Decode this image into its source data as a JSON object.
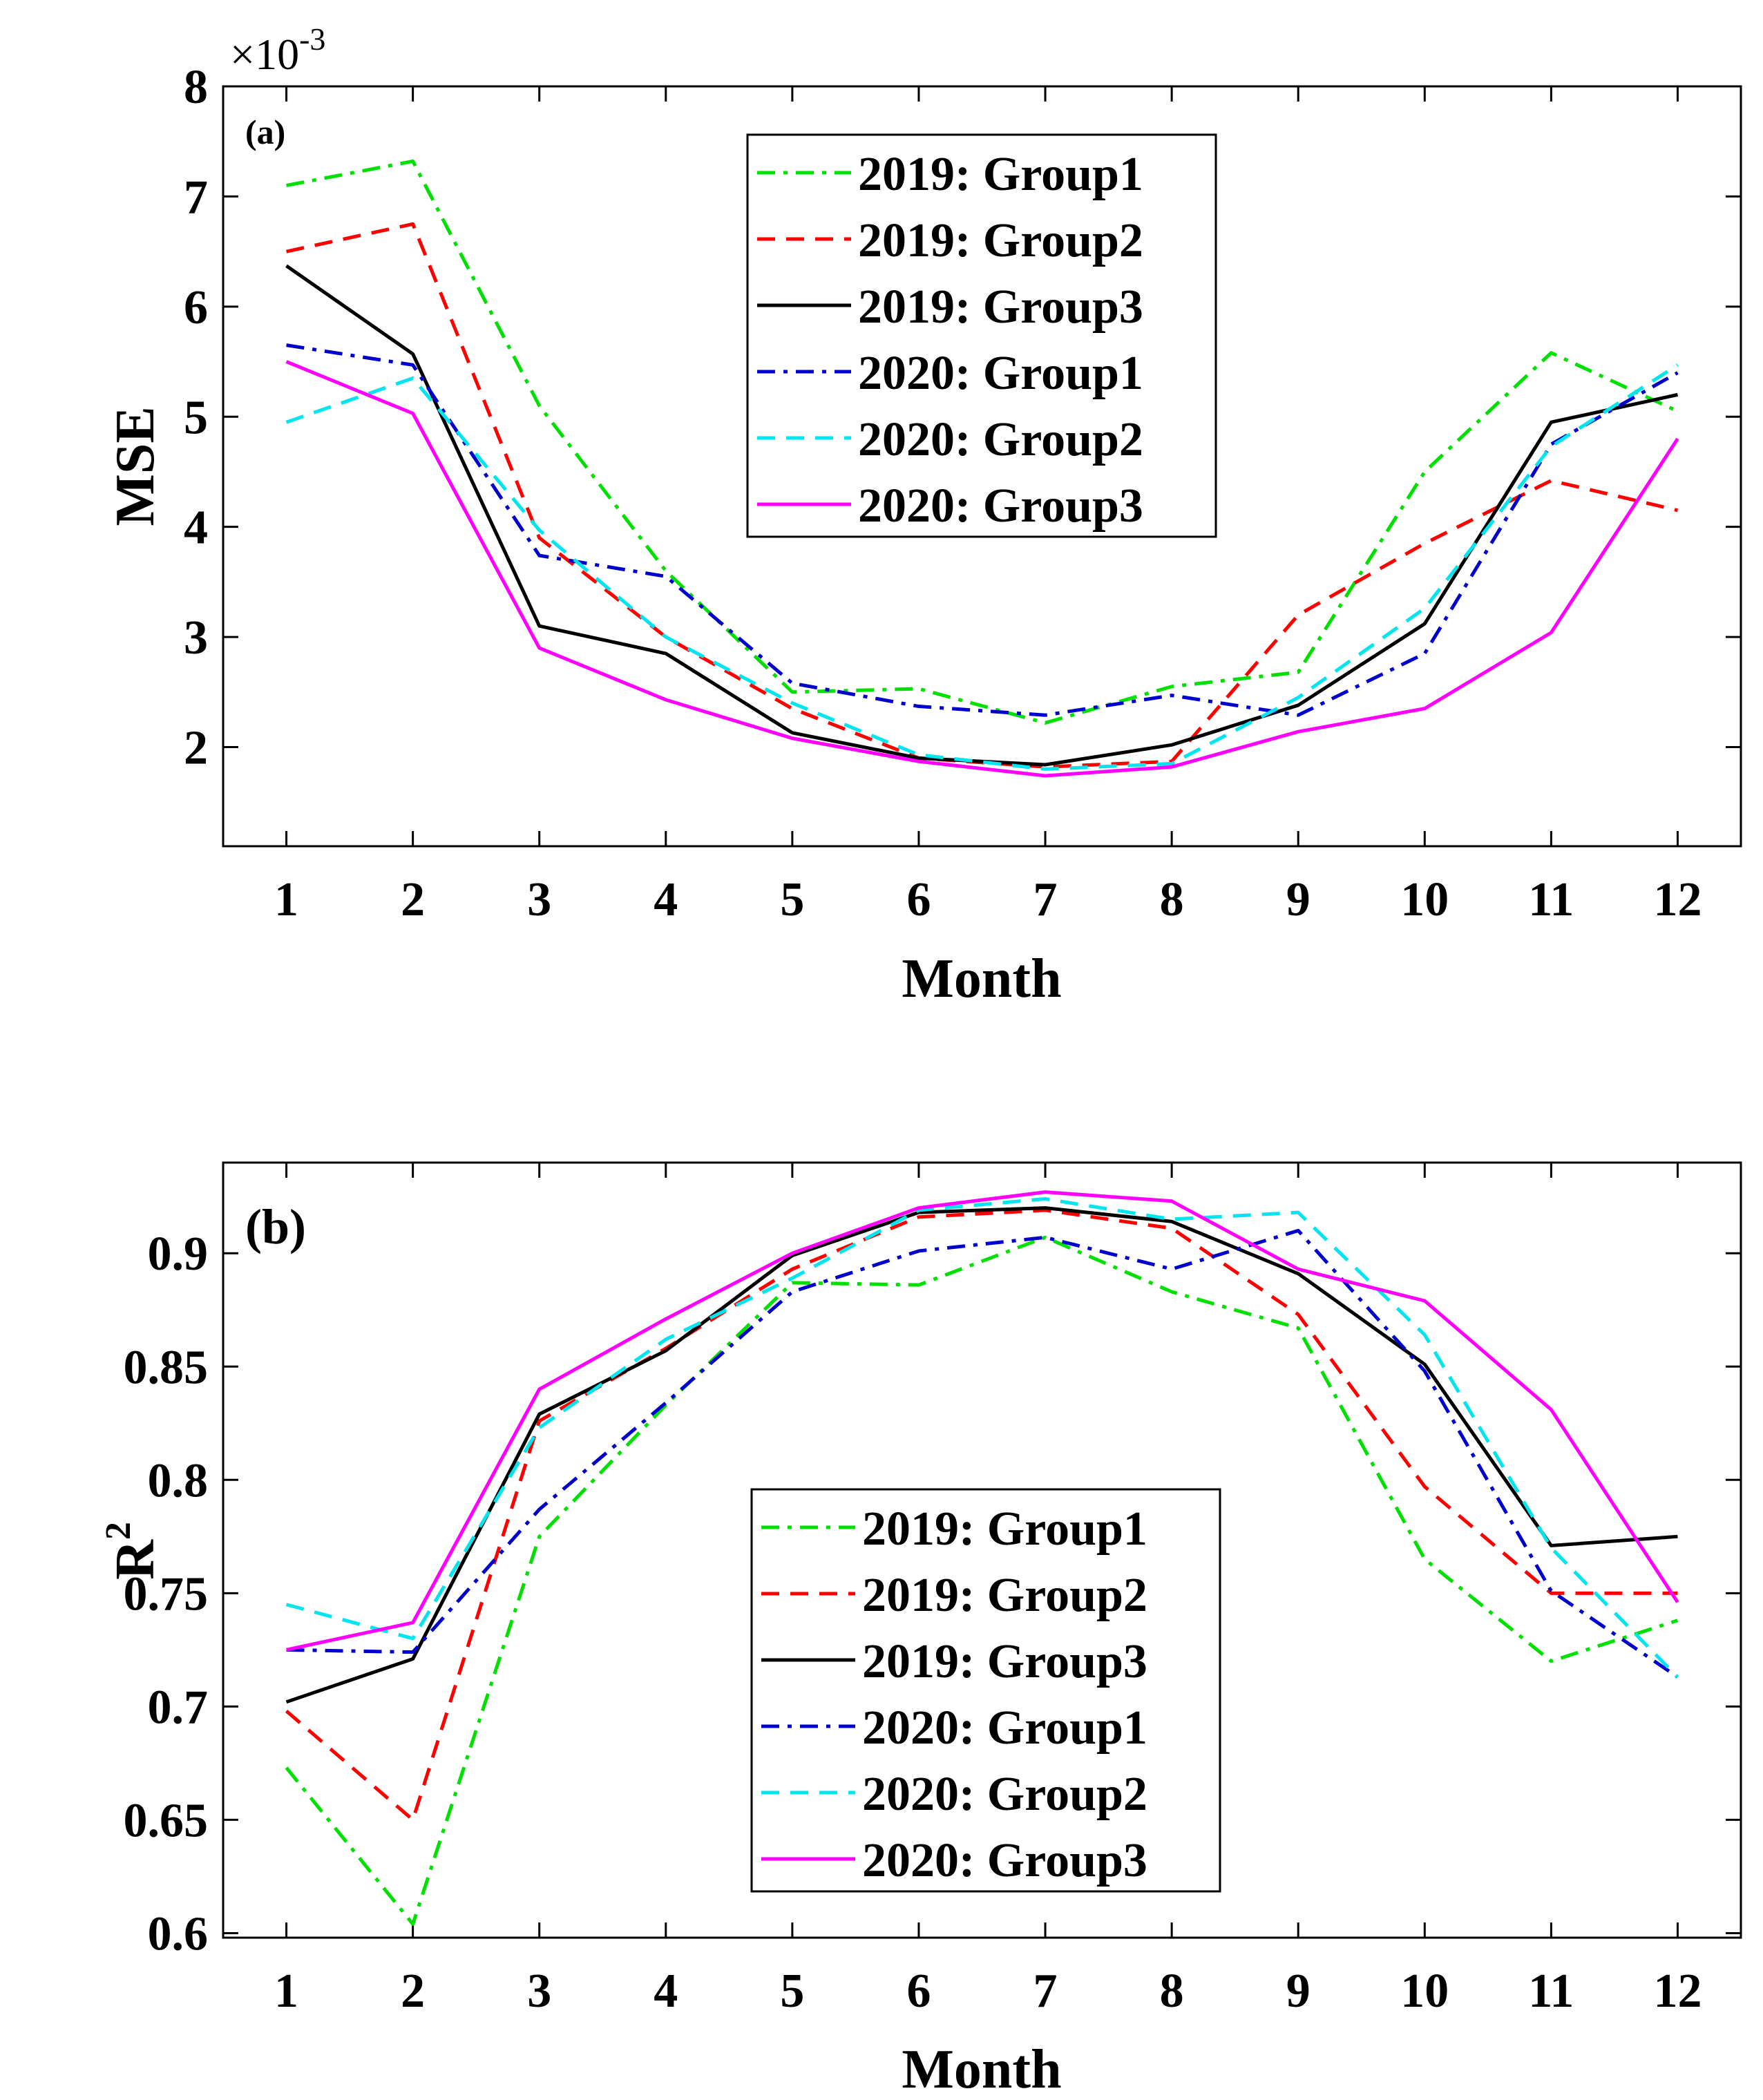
{
  "figure": {
    "background": "#ffffff"
  },
  "months": [
    1,
    2,
    3,
    4,
    5,
    6,
    7,
    8,
    9,
    10,
    11,
    12
  ],
  "series_styles": [
    {
      "name": "2019: Group1",
      "color": "#00e000",
      "dash": "dashdot"
    },
    {
      "name": "2019: Group2",
      "color": "#ff0000",
      "dash": "dashed"
    },
    {
      "name": "2019: Group3",
      "color": "#000000",
      "dash": "solid"
    },
    {
      "name": "2020: Group1",
      "color": "#0000cc",
      "dash": "dashdot"
    },
    {
      "name": "2020: Group2",
      "color": "#00e5ee",
      "dash": "dashed"
    },
    {
      "name": "2020: Group3",
      "color": "#ff00ff",
      "dash": "solid"
    }
  ],
  "chart_data": [
    {
      "type": "line",
      "panel_label": "(a)",
      "title": "",
      "xlabel": "Month",
      "ylabel": "MSE",
      "exponent_label": "×10",
      "exponent_power": "-3",
      "xlim": [
        0.5,
        12.5
      ],
      "ylim": [
        1.1,
        8.0
      ],
      "yticks": [
        2,
        3,
        4,
        5,
        6,
        7,
        8
      ],
      "ytick_labels": [
        "2",
        "3",
        "4",
        "5",
        "6",
        "7",
        "8"
      ],
      "xticks": [
        1,
        2,
        3,
        4,
        5,
        6,
        7,
        8,
        9,
        10,
        11,
        12
      ],
      "xtick_labels": [
        "1",
        "2",
        "3",
        "4",
        "5",
        "6",
        "7",
        "8",
        "9",
        "10",
        "11",
        "12"
      ],
      "legend_position": "top-center",
      "series": [
        {
          "name": "2019: Group1",
          "values": [
            7.1,
            7.32,
            5.1,
            3.6,
            2.5,
            2.53,
            2.22,
            2.55,
            2.68,
            4.5,
            5.58,
            5.05
          ]
        },
        {
          "name": "2019: Group2",
          "values": [
            6.5,
            6.75,
            3.9,
            3.0,
            2.35,
            1.9,
            1.82,
            1.87,
            3.2,
            3.85,
            4.42,
            4.15
          ]
        },
        {
          "name": "2019: Group3",
          "values": [
            6.37,
            5.57,
            3.1,
            2.85,
            2.13,
            1.9,
            1.84,
            2.02,
            2.38,
            3.12,
            4.95,
            5.2
          ]
        },
        {
          "name": "2020: Group1",
          "values": [
            5.65,
            5.47,
            3.74,
            3.55,
            2.58,
            2.37,
            2.29,
            2.47,
            2.29,
            2.85,
            4.75,
            5.4
          ]
        },
        {
          "name": "2020: Group2",
          "values": [
            4.95,
            5.35,
            3.97,
            3.0,
            2.4,
            1.93,
            1.8,
            1.85,
            2.45,
            3.26,
            4.73,
            5.47
          ]
        },
        {
          "name": "2020: Group3",
          "values": [
            5.5,
            5.03,
            2.9,
            2.43,
            2.08,
            1.87,
            1.74,
            1.82,
            2.14,
            2.35,
            3.04,
            4.8
          ]
        }
      ]
    },
    {
      "type": "line",
      "panel_label": "(b)",
      "title": "",
      "xlabel": "Month",
      "ylabel": "R",
      "ylabel_superscript": "2",
      "xlim": [
        0.5,
        12.5
      ],
      "ylim": [
        0.598,
        0.94
      ],
      "yticks": [
        0.6,
        0.65,
        0.7,
        0.75,
        0.8,
        0.85,
        0.9
      ],
      "ytick_labels": [
        "0.6",
        "0.65",
        "0.7",
        "0.75",
        "0.8",
        "0.85",
        "0.9"
      ],
      "xticks": [
        1,
        2,
        3,
        4,
        5,
        6,
        7,
        8,
        9,
        10,
        11,
        12
      ],
      "xtick_labels": [
        "1",
        "2",
        "3",
        "4",
        "5",
        "6",
        "7",
        "8",
        "9",
        "10",
        "11",
        "12"
      ],
      "legend_position": "bottom-center",
      "series": [
        {
          "name": "2019: Group1",
          "values": [
            0.673,
            0.604,
            0.775,
            0.833,
            0.887,
            0.886,
            0.907,
            0.883,
            0.867,
            0.765,
            0.72,
            0.738
          ]
        },
        {
          "name": "2019: Group2",
          "values": [
            0.698,
            0.65,
            0.826,
            0.858,
            0.893,
            0.916,
            0.919,
            0.911,
            0.873,
            0.797,
            0.75,
            0.75
          ]
        },
        {
          "name": "2019: Group3",
          "values": [
            0.702,
            0.721,
            0.829,
            0.857,
            0.899,
            0.918,
            0.92,
            0.914,
            0.891,
            0.851,
            0.771,
            0.775
          ]
        },
        {
          "name": "2020: Group1",
          "values": [
            0.725,
            0.724,
            0.787,
            0.834,
            0.883,
            0.901,
            0.907,
            0.893,
            0.91,
            0.848,
            0.751,
            0.713
          ]
        },
        {
          "name": "2020: Group2",
          "values": [
            0.745,
            0.73,
            0.823,
            0.862,
            0.889,
            0.919,
            0.924,
            0.915,
            0.918,
            0.864,
            0.77,
            0.713
          ]
        },
        {
          "name": "2020: Group3",
          "values": [
            0.725,
            0.737,
            0.84,
            0.871,
            0.9,
            0.92,
            0.927,
            0.923,
            0.893,
            0.879,
            0.831,
            0.746
          ]
        }
      ]
    }
  ]
}
